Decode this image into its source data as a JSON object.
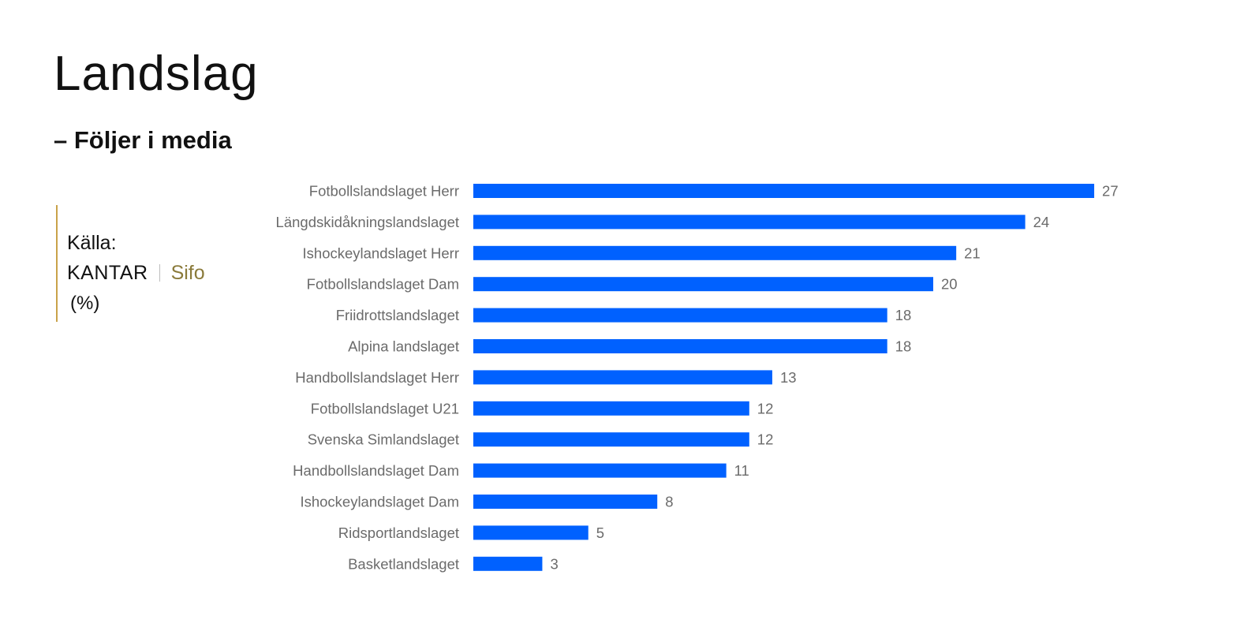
{
  "header": {
    "title": "Landslag",
    "subtitle": "– Följer i media"
  },
  "source": {
    "label": "Källa:",
    "brand_name": "KANTAR",
    "brand_sub": "Sifo",
    "unit": "(%)"
  },
  "colors": {
    "bar": "#0061ff",
    "accent_line": "#c9a24a"
  },
  "chart_data": {
    "type": "bar",
    "orientation": "horizontal",
    "categories": [
      "Fotbollslandslaget Herr",
      "Längdskidåkningslandslaget",
      "Ishockeylandslaget Herr",
      "Fotbollslandslaget Dam",
      "Friidrottslandslaget",
      "Alpina landslaget",
      "Handbollslandslaget Herr",
      "Fotbollslandslaget U21",
      "Svenska Simlandslaget",
      "Handbollslandslaget Dam",
      "Ishockeylandslaget Dam",
      "Ridsportlandslaget",
      "Basketlandslaget"
    ],
    "values": [
      27,
      24,
      21,
      20,
      18,
      18,
      13,
      12,
      12,
      11,
      8,
      5,
      3
    ],
    "data_labels": true,
    "grid": false,
    "legend": "none"
  }
}
